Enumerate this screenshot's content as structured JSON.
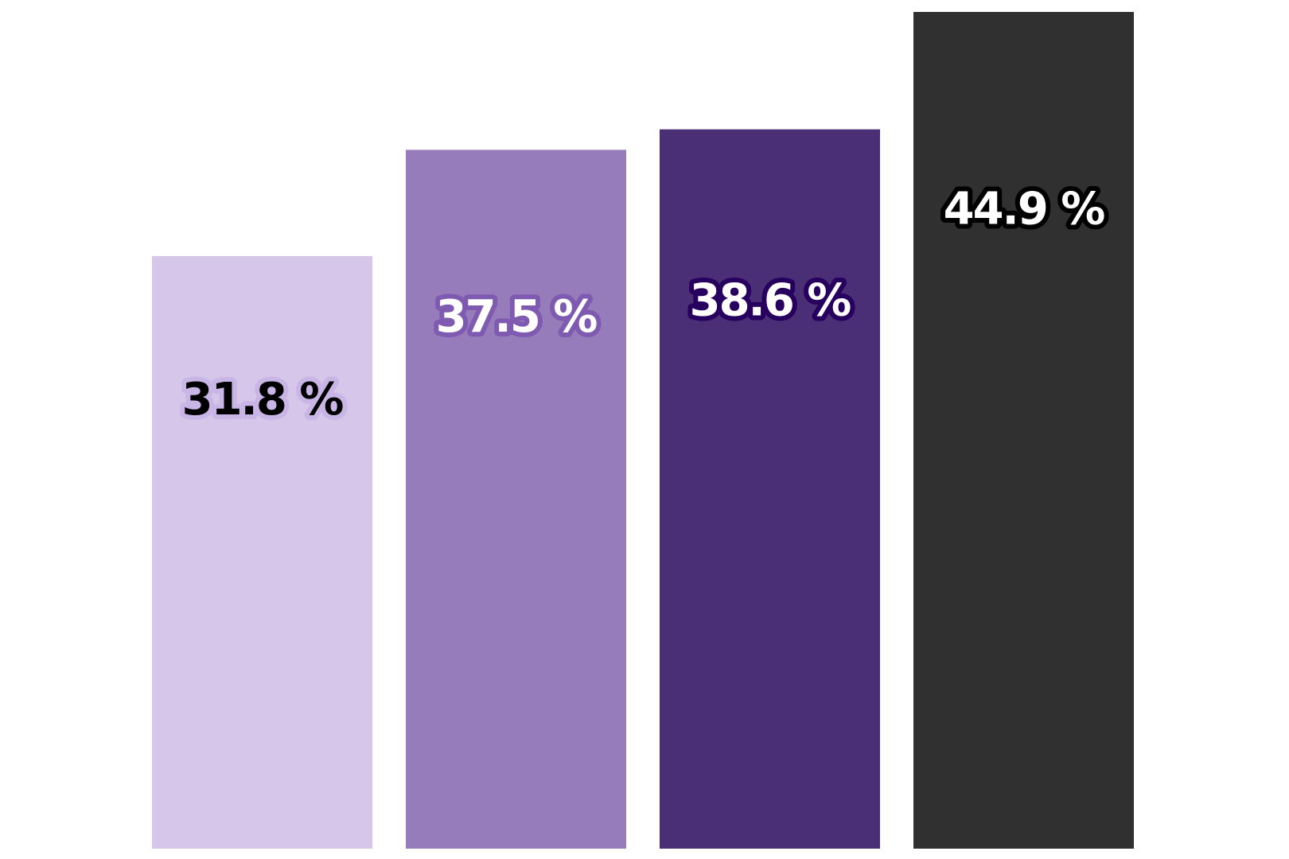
{
  "chart_data": {
    "type": "bar",
    "categories": [
      "",
      "",
      "",
      ""
    ],
    "values": [
      31.8,
      37.5,
      38.6,
      44.9
    ],
    "labels": [
      "31.8 %",
      "37.5 %",
      "38.6 %",
      "44.9 %"
    ],
    "colors": [
      "#d6c6e9",
      "#977cbb",
      "#4b2f76",
      "#303030"
    ],
    "label_colors": [
      "#000000",
      "#ffffff",
      "#ffffff",
      "#ffffff"
    ],
    "label_outline_colors": [
      "#cab6e6",
      "#7e5bb0",
      "#27005f",
      "#000000"
    ],
    "title": "",
    "xlabel": "",
    "ylabel": "",
    "ylim": [
      0,
      44.9
    ],
    "grid": false,
    "legend": "none"
  }
}
